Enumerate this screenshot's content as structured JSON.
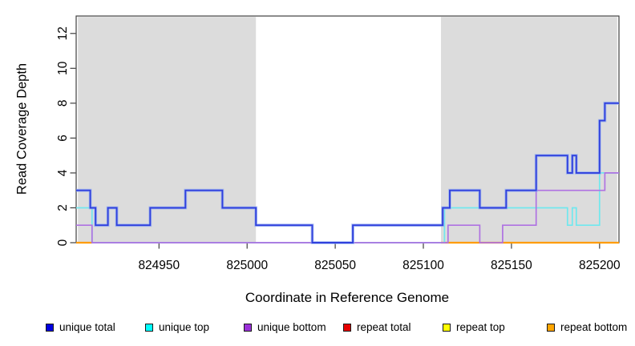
{
  "chart_data": {
    "type": "line",
    "subtype": "step-coverage",
    "title": "",
    "xlabel": "Coordinate in Reference Genome",
    "ylabel": "Read Coverage Depth",
    "xlim": [
      824903,
      825211
    ],
    "ylim": [
      0,
      13
    ],
    "x_ticks": [
      824950,
      825000,
      825050,
      825100,
      825150,
      825200
    ],
    "y_ticks": [
      0,
      2,
      4,
      6,
      8,
      10,
      12
    ],
    "grid": false,
    "legend_position": "bottom",
    "shade_color": "#dcdcdc",
    "shaded_regions": [
      {
        "x0": 824904,
        "x1": 825005
      },
      {
        "x0": 825110,
        "x1": 825210
      }
    ],
    "series": [
      {
        "name": "unique total",
        "color": "#0000e0",
        "line_color": "#3040dd",
        "steps": [
          [
            824903,
            3
          ],
          [
            824911,
            2
          ],
          [
            824914,
            1
          ],
          [
            824921,
            2
          ],
          [
            824926,
            1
          ],
          [
            824945,
            2
          ],
          [
            824965,
            3
          ],
          [
            824986,
            2
          ],
          [
            825005,
            1
          ],
          [
            825037,
            0
          ],
          [
            825060,
            1
          ],
          [
            825111,
            2
          ],
          [
            825115,
            3
          ],
          [
            825132,
            2
          ],
          [
            825147,
            3
          ],
          [
            825164,
            5
          ],
          [
            825181.8,
            4
          ],
          [
            825184.5,
            5
          ],
          [
            825186.8,
            4
          ],
          [
            825200,
            7
          ],
          [
            825203,
            8
          ],
          [
            825211,
            8
          ]
        ]
      },
      {
        "name": "unique top",
        "color": "#00ffff",
        "line_color": "#70e8ee",
        "steps": [
          [
            824903,
            2
          ],
          [
            824912,
            0
          ],
          [
            825112,
            2
          ],
          [
            825181.8,
            1
          ],
          [
            825184.5,
            2
          ],
          [
            825186.8,
            1
          ],
          [
            825200,
            4
          ],
          [
            825211,
            4
          ]
        ]
      },
      {
        "name": "unique bottom",
        "color": "#9b30d9",
        "line_color": "#af72e2",
        "steps": [
          [
            824903,
            1
          ],
          [
            824912,
            0
          ],
          [
            825114,
            1
          ],
          [
            825132,
            0
          ],
          [
            825145,
            1
          ],
          [
            825164,
            3
          ],
          [
            825203,
            4
          ],
          [
            825211,
            4
          ]
        ]
      },
      {
        "name": "repeat total",
        "color": "#e60000",
        "line_color": "#d95e85",
        "steps": [
          [
            824903,
            0
          ],
          [
            825211,
            0
          ]
        ]
      },
      {
        "name": "repeat top",
        "color": "#ffff00",
        "line_color": "#a2d39d",
        "steps": [
          [
            824903,
            0
          ],
          [
            825211,
            0
          ]
        ]
      },
      {
        "name": "repeat bottom",
        "color": "#ffa500",
        "line_color": "#ff9c00",
        "steps": [
          [
            824903,
            0
          ],
          [
            825211,
            0
          ]
        ]
      }
    ],
    "zero_line_segments": [
      {
        "x0": 824903,
        "x1": 824912,
        "color": "#ff9c00",
        "w": 2.2
      },
      {
        "x0": 824912,
        "x1": 825060,
        "color": "#d95e85",
        "w": 1.5
      },
      {
        "x0": 825060,
        "x1": 825110,
        "color": "#a2d39d",
        "w": 1.8
      },
      {
        "x0": 825110,
        "x1": 825211,
        "color": "#ff9c00",
        "w": 2.2
      }
    ]
  }
}
